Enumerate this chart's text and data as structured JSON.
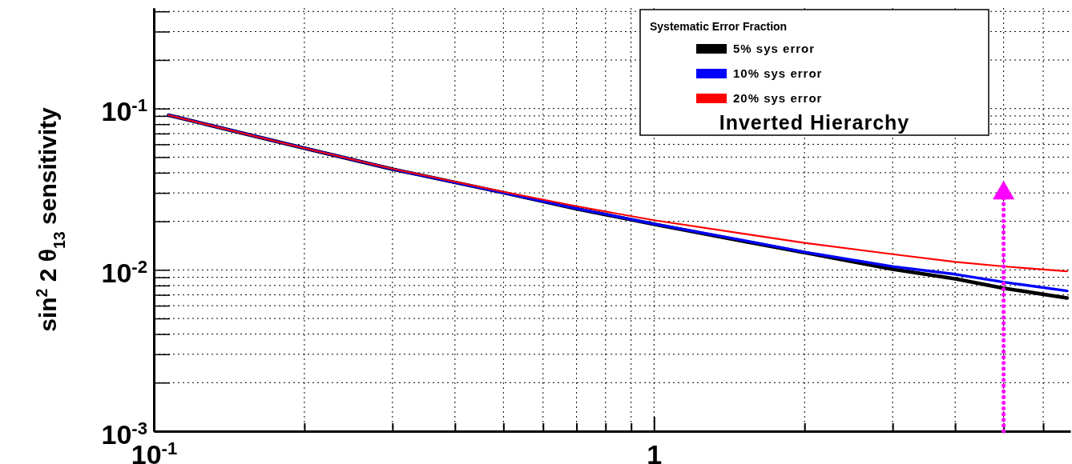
{
  "chart_data": {
    "type": "line",
    "ylabel": "sin$^{2}$ 2 θ$_{13}$ sensitivity",
    "legend_title": "Systematic Error Fraction",
    "annotations": [
      "Inverted Hierarchy"
    ],
    "log": "xy",
    "grid": true,
    "legend": "top right",
    "line_style": "solid",
    "marker": "none",
    "xlim": [
      0.1,
      6.8
    ],
    "ylim": [
      0.001,
      0.42
    ],
    "xticks": [
      {
        "value": 0.1,
        "label": "10$^{-1}$"
      },
      {
        "value": 0.2,
        "label": null
      },
      {
        "value": 0.3,
        "label": null
      },
      {
        "value": 0.4,
        "label": null
      },
      {
        "value": 0.5,
        "label": null
      },
      {
        "value": 0.6,
        "label": null
      },
      {
        "value": 0.7,
        "label": null
      },
      {
        "value": 0.8,
        "label": null
      },
      {
        "value": 0.9,
        "label": null
      },
      1,
      {
        "value": 2,
        "label": null
      },
      {
        "value": 3,
        "label": null
      },
      {
        "value": 4,
        "label": null
      },
      {
        "value": 5,
        "label": null
      },
      {
        "value": 6,
        "label": null
      }
    ],
    "yticks": [
      {
        "value": 0.001,
        "label": "10$^{-3}$"
      },
      {
        "value": 0.002,
        "label": null
      },
      {
        "value": 0.003,
        "label": null
      },
      {
        "value": 0.004,
        "label": null
      },
      {
        "value": 0.005,
        "label": null
      },
      {
        "value": 0.006,
        "label": null
      },
      {
        "value": 0.007,
        "label": null
      },
      {
        "value": 0.008,
        "label": null
      },
      {
        "value": 0.009,
        "label": null
      },
      {
        "value": 0.01,
        "label": "10$^{-2}$"
      },
      {
        "value": 0.02,
        "label": null
      },
      {
        "value": 0.03,
        "label": null
      },
      {
        "value": 0.04,
        "label": null
      },
      {
        "value": 0.05,
        "label": null
      },
      {
        "value": 0.06,
        "label": null
      },
      {
        "value": 0.07,
        "label": null
      },
      {
        "value": 0.08,
        "label": null
      },
      {
        "value": 0.09,
        "label": null
      },
      {
        "value": 0.1,
        "label": "10$^{-1}$"
      },
      {
        "value": 0.2,
        "label": null
      },
      {
        "value": 0.3,
        "label": null
      },
      {
        "value": 0.4,
        "label": null
      }
    ],
    "x": [
      0.107,
      0.2,
      0.3,
      0.5,
      0.7,
      1,
      1.5,
      2,
      3,
      4,
      5,
      6.7
    ],
    "series": [
      {
        "name": "5% sys error",
        "color": "#000000",
        "values": [
          0.091,
          0.0568,
          0.0421,
          0.0301,
          0.0239,
          0.0192,
          0.0151,
          0.0128,
          0.0101,
          0.0088,
          0.0077,
          0.0067
        ]
      },
      {
        "name": "10% sys error",
        "color": "#0000ff",
        "values": [
          0.091,
          0.0568,
          0.0421,
          0.0301,
          0.024,
          0.0193,
          0.0153,
          0.0129,
          0.0105,
          0.0094,
          0.0084,
          0.0074
        ]
      },
      {
        "name": "20% sys error",
        "color": "#ff0000",
        "values": [
          0.091,
          0.0568,
          0.0423,
          0.0305,
          0.0248,
          0.0203,
          0.0168,
          0.0147,
          0.0125,
          0.0112,
          0.0105,
          0.0098
        ]
      },
      {
        "color": "#ff00ff",
        "x": [
          5,
          5
        ],
        "values": [
          0.001,
          0.032
        ],
        "line_style": "dotted",
        "marker": "triangle"
      }
    ]
  }
}
